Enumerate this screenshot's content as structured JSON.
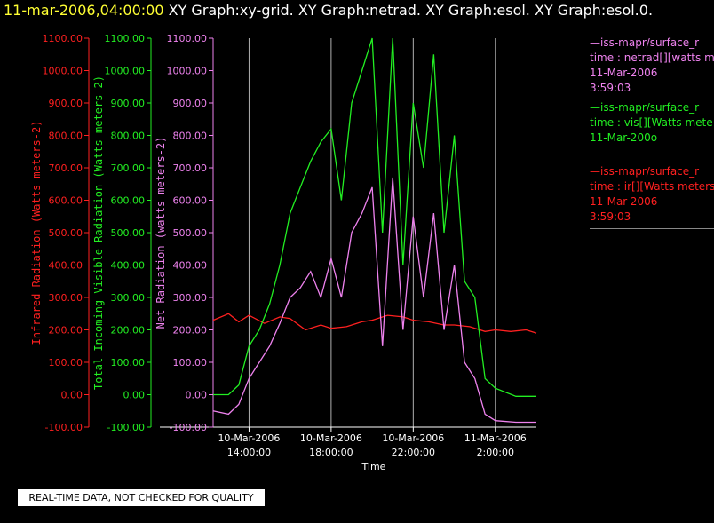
{
  "header": {
    "timestamp": "11-mar-2006,04:00:00",
    "graphs": "XY Graph:xy-grid.  XY Graph:netrad.  XY Graph:esol.  XY Graph:esol.0."
  },
  "notice": "REAL-TIME DATA, NOT CHECKED FOR QUALITY",
  "colors": {
    "ir": "#ff2020",
    "vis": "#22ee22",
    "netrad": "#ee82ee",
    "grid": "#b0b0b0",
    "background": "#000000"
  },
  "legend": [
    {
      "id": "netrad",
      "line1": "—iss-mapr/surface_r",
      "line2": "time : netrad[][watts m",
      "line3": "11-Mar-2006",
      "line4": "3:59:03"
    },
    {
      "id": "vis",
      "line1": "—iss-mapr/surface_r",
      "line2": "time : vis[][Watts mete",
      "line3": "11-Mar-200o",
      "line4": ""
    },
    {
      "id": "ir",
      "line1": "—iss-mapr/surface_r",
      "line2": "time : ir[][Watts meters",
      "line3": "11-Mar-2006",
      "line4": "3:59:03"
    }
  ],
  "chart_data": {
    "type": "line",
    "xlabel": "Time",
    "x_range": [
      "10-Mar-2006 12:15",
      "11-Mar-2006 04:00"
    ],
    "x_ticks": [
      {
        "t": "10-Mar-2006 14:00",
        "date": "10-Mar-2006",
        "time": "14:00:00"
      },
      {
        "t": "10-Mar-2006 18:00",
        "date": "10-Mar-2006",
        "time": "18:00:00"
      },
      {
        "t": "10-Mar-2006 22:00",
        "date": "10-Mar-2006",
        "time": "22:00:00"
      },
      {
        "t": "11-Mar-2006 02:00",
        "date": "11-Mar-2006",
        "time": "2:00:00"
      }
    ],
    "grid": true,
    "y_axes": [
      {
        "id": "ir",
        "label": "Infrared Radiation (Watts meters-2)",
        "ylim": [
          -100,
          1100
        ],
        "ticks": [
          "-100.00",
          "0.00",
          "100.00",
          "200.00",
          "300.00",
          "400.00",
          "500.00",
          "600.00",
          "700.00",
          "800.00",
          "900.00",
          "1000.00",
          "1100.00"
        ]
      },
      {
        "id": "vis",
        "label": "Total Incoming Visible Radiation (Watts meters-2)",
        "ylim": [
          -100,
          1100
        ],
        "ticks": [
          "-100.00",
          "0.00",
          "100.00",
          "200.00",
          "300.00",
          "400.00",
          "500.00",
          "600.00",
          "700.00",
          "800.00",
          "900.00",
          "1000.00",
          "1100.00"
        ]
      },
      {
        "id": "netrad",
        "label": "Net Radiation (watts meters-2)",
        "ylim": [
          -100,
          1100
        ],
        "ticks": [
          "-100.00",
          "0.00",
          "100.00",
          "200.00",
          "300.00",
          "400.00",
          "500.00",
          "600.00",
          "700.00",
          "800.00",
          "900.00",
          "1000.00",
          "1100.00"
        ]
      }
    ],
    "series": [
      {
        "name": "ir",
        "axis": "ir",
        "x": [
          "10-Mar-2006 12:15",
          "10-Mar-2006 13:00",
          "10-Mar-2006 13:30",
          "10-Mar-2006 14:00",
          "10-Mar-2006 14:45",
          "10-Mar-2006 15:30",
          "10-Mar-2006 16:00",
          "10-Mar-2006 16:45",
          "10-Mar-2006 17:30",
          "10-Mar-2006 18:00",
          "10-Mar-2006 18:45",
          "10-Mar-2006 19:30",
          "10-Mar-2006 20:00",
          "10-Mar-2006 20:45",
          "10-Mar-2006 21:30",
          "10-Mar-2006 22:00",
          "10-Mar-2006 22:45",
          "10-Mar-2006 23:30",
          "11-Mar-2006 00:00",
          "11-Mar-2006 00:45",
          "11-Mar-2006 01:30",
          "11-Mar-2006 02:00",
          "11-Mar-2006 02:45",
          "11-Mar-2006 03:30",
          "11-Mar-2006 04:00"
        ],
        "y": [
          230,
          250,
          225,
          245,
          220,
          240,
          235,
          200,
          215,
          205,
          210,
          225,
          230,
          245,
          240,
          230,
          225,
          215,
          215,
          210,
          195,
          200,
          195,
          200,
          190
        ]
      },
      {
        "name": "vis",
        "axis": "vis",
        "x": [
          "10-Mar-2006 12:15",
          "10-Mar-2006 13:00",
          "10-Mar-2006 13:30",
          "10-Mar-2006 14:00",
          "10-Mar-2006 14:30",
          "10-Mar-2006 15:00",
          "10-Mar-2006 15:30",
          "10-Mar-2006 16:00",
          "10-Mar-2006 16:30",
          "10-Mar-2006 17:00",
          "10-Mar-2006 17:30",
          "10-Mar-2006 18:00",
          "10-Mar-2006 18:30",
          "10-Mar-2006 19:00",
          "10-Mar-2006 19:30",
          "10-Mar-2006 20:00",
          "10-Mar-2006 20:30",
          "10-Mar-2006 21:00",
          "10-Mar-2006 21:30",
          "10-Mar-2006 22:00",
          "10-Mar-2006 22:30",
          "10-Mar-2006 23:00",
          "10-Mar-2006 23:30",
          "11-Mar-2006 00:00",
          "11-Mar-2006 00:30",
          "11-Mar-2006 01:00",
          "11-Mar-2006 01:30",
          "11-Mar-2006 02:00",
          "11-Mar-2006 03:00",
          "11-Mar-2006 04:00"
        ],
        "y": [
          0,
          0,
          30,
          150,
          200,
          280,
          400,
          560,
          640,
          720,
          780,
          820,
          600,
          900,
          1000,
          1100,
          500,
          1100,
          400,
          900,
          700,
          1050,
          500,
          800,
          350,
          300,
          50,
          20,
          -5,
          -5
        ]
      },
      {
        "name": "netrad",
        "axis": "netrad",
        "x": [
          "10-Mar-2006 12:15",
          "10-Mar-2006 13:00",
          "10-Mar-2006 13:30",
          "10-Mar-2006 14:00",
          "10-Mar-2006 14:30",
          "10-Mar-2006 15:00",
          "10-Mar-2006 15:30",
          "10-Mar-2006 16:00",
          "10-Mar-2006 16:30",
          "10-Mar-2006 17:00",
          "10-Mar-2006 17:30",
          "10-Mar-2006 18:00",
          "10-Mar-2006 18:30",
          "10-Mar-2006 19:00",
          "10-Mar-2006 19:30",
          "10-Mar-2006 20:00",
          "10-Mar-2006 20:30",
          "10-Mar-2006 21:00",
          "10-Mar-2006 21:30",
          "10-Mar-2006 22:00",
          "10-Mar-2006 22:30",
          "10-Mar-2006 23:00",
          "10-Mar-2006 23:30",
          "11-Mar-2006 00:00",
          "11-Mar-2006 00:30",
          "11-Mar-2006 01:00",
          "11-Mar-2006 01:30",
          "11-Mar-2006 02:00",
          "11-Mar-2006 03:00",
          "11-Mar-2006 04:00"
        ],
        "y": [
          -50,
          -60,
          -30,
          50,
          100,
          150,
          220,
          300,
          330,
          380,
          300,
          420,
          300,
          500,
          560,
          640,
          150,
          670,
          200,
          550,
          300,
          560,
          200,
          400,
          100,
          50,
          -60,
          -80,
          -85,
          -85
        ]
      }
    ]
  }
}
